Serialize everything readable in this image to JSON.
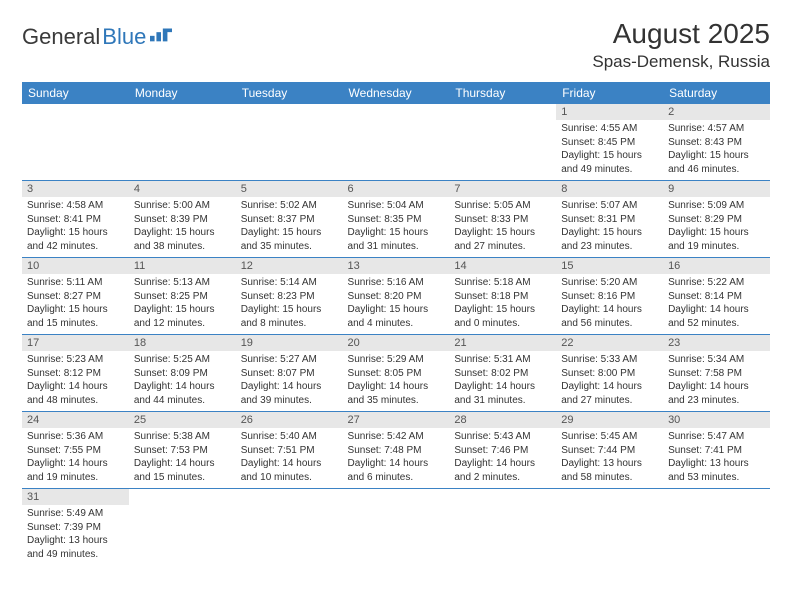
{
  "logo": {
    "text1": "General",
    "text2": "Blue"
  },
  "header": {
    "month": "August 2025",
    "location": "Spas-Demensk, Russia"
  },
  "colors": {
    "header_bg": "#3b82c4",
    "header_text": "#ffffff",
    "daynum_bg": "#e7e7e7",
    "rule": "#3b82c4",
    "logo_blue": "#2f77b9"
  },
  "weekdays": [
    "Sunday",
    "Monday",
    "Tuesday",
    "Wednesday",
    "Thursday",
    "Friday",
    "Saturday"
  ],
  "weeks": [
    [
      null,
      null,
      null,
      null,
      null,
      {
        "n": "1",
        "sr": "Sunrise: 4:55 AM",
        "ss": "Sunset: 8:45 PM",
        "dl": "Daylight: 15 hours and 49 minutes."
      },
      {
        "n": "2",
        "sr": "Sunrise: 4:57 AM",
        "ss": "Sunset: 8:43 PM",
        "dl": "Daylight: 15 hours and 46 minutes."
      }
    ],
    [
      {
        "n": "3",
        "sr": "Sunrise: 4:58 AM",
        "ss": "Sunset: 8:41 PM",
        "dl": "Daylight: 15 hours and 42 minutes."
      },
      {
        "n": "4",
        "sr": "Sunrise: 5:00 AM",
        "ss": "Sunset: 8:39 PM",
        "dl": "Daylight: 15 hours and 38 minutes."
      },
      {
        "n": "5",
        "sr": "Sunrise: 5:02 AM",
        "ss": "Sunset: 8:37 PM",
        "dl": "Daylight: 15 hours and 35 minutes."
      },
      {
        "n": "6",
        "sr": "Sunrise: 5:04 AM",
        "ss": "Sunset: 8:35 PM",
        "dl": "Daylight: 15 hours and 31 minutes."
      },
      {
        "n": "7",
        "sr": "Sunrise: 5:05 AM",
        "ss": "Sunset: 8:33 PM",
        "dl": "Daylight: 15 hours and 27 minutes."
      },
      {
        "n": "8",
        "sr": "Sunrise: 5:07 AM",
        "ss": "Sunset: 8:31 PM",
        "dl": "Daylight: 15 hours and 23 minutes."
      },
      {
        "n": "9",
        "sr": "Sunrise: 5:09 AM",
        "ss": "Sunset: 8:29 PM",
        "dl": "Daylight: 15 hours and 19 minutes."
      }
    ],
    [
      {
        "n": "10",
        "sr": "Sunrise: 5:11 AM",
        "ss": "Sunset: 8:27 PM",
        "dl": "Daylight: 15 hours and 15 minutes."
      },
      {
        "n": "11",
        "sr": "Sunrise: 5:13 AM",
        "ss": "Sunset: 8:25 PM",
        "dl": "Daylight: 15 hours and 12 minutes."
      },
      {
        "n": "12",
        "sr": "Sunrise: 5:14 AM",
        "ss": "Sunset: 8:23 PM",
        "dl": "Daylight: 15 hours and 8 minutes."
      },
      {
        "n": "13",
        "sr": "Sunrise: 5:16 AM",
        "ss": "Sunset: 8:20 PM",
        "dl": "Daylight: 15 hours and 4 minutes."
      },
      {
        "n": "14",
        "sr": "Sunrise: 5:18 AM",
        "ss": "Sunset: 8:18 PM",
        "dl": "Daylight: 15 hours and 0 minutes."
      },
      {
        "n": "15",
        "sr": "Sunrise: 5:20 AM",
        "ss": "Sunset: 8:16 PM",
        "dl": "Daylight: 14 hours and 56 minutes."
      },
      {
        "n": "16",
        "sr": "Sunrise: 5:22 AM",
        "ss": "Sunset: 8:14 PM",
        "dl": "Daylight: 14 hours and 52 minutes."
      }
    ],
    [
      {
        "n": "17",
        "sr": "Sunrise: 5:23 AM",
        "ss": "Sunset: 8:12 PM",
        "dl": "Daylight: 14 hours and 48 minutes."
      },
      {
        "n": "18",
        "sr": "Sunrise: 5:25 AM",
        "ss": "Sunset: 8:09 PM",
        "dl": "Daylight: 14 hours and 44 minutes."
      },
      {
        "n": "19",
        "sr": "Sunrise: 5:27 AM",
        "ss": "Sunset: 8:07 PM",
        "dl": "Daylight: 14 hours and 39 minutes."
      },
      {
        "n": "20",
        "sr": "Sunrise: 5:29 AM",
        "ss": "Sunset: 8:05 PM",
        "dl": "Daylight: 14 hours and 35 minutes."
      },
      {
        "n": "21",
        "sr": "Sunrise: 5:31 AM",
        "ss": "Sunset: 8:02 PM",
        "dl": "Daylight: 14 hours and 31 minutes."
      },
      {
        "n": "22",
        "sr": "Sunrise: 5:33 AM",
        "ss": "Sunset: 8:00 PM",
        "dl": "Daylight: 14 hours and 27 minutes."
      },
      {
        "n": "23",
        "sr": "Sunrise: 5:34 AM",
        "ss": "Sunset: 7:58 PM",
        "dl": "Daylight: 14 hours and 23 minutes."
      }
    ],
    [
      {
        "n": "24",
        "sr": "Sunrise: 5:36 AM",
        "ss": "Sunset: 7:55 PM",
        "dl": "Daylight: 14 hours and 19 minutes."
      },
      {
        "n": "25",
        "sr": "Sunrise: 5:38 AM",
        "ss": "Sunset: 7:53 PM",
        "dl": "Daylight: 14 hours and 15 minutes."
      },
      {
        "n": "26",
        "sr": "Sunrise: 5:40 AM",
        "ss": "Sunset: 7:51 PM",
        "dl": "Daylight: 14 hours and 10 minutes."
      },
      {
        "n": "27",
        "sr": "Sunrise: 5:42 AM",
        "ss": "Sunset: 7:48 PM",
        "dl": "Daylight: 14 hours and 6 minutes."
      },
      {
        "n": "28",
        "sr": "Sunrise: 5:43 AM",
        "ss": "Sunset: 7:46 PM",
        "dl": "Daylight: 14 hours and 2 minutes."
      },
      {
        "n": "29",
        "sr": "Sunrise: 5:45 AM",
        "ss": "Sunset: 7:44 PM",
        "dl": "Daylight: 13 hours and 58 minutes."
      },
      {
        "n": "30",
        "sr": "Sunrise: 5:47 AM",
        "ss": "Sunset: 7:41 PM",
        "dl": "Daylight: 13 hours and 53 minutes."
      }
    ],
    [
      {
        "n": "31",
        "sr": "Sunrise: 5:49 AM",
        "ss": "Sunset: 7:39 PM",
        "dl": "Daylight: 13 hours and 49 minutes."
      },
      null,
      null,
      null,
      null,
      null,
      null
    ]
  ]
}
